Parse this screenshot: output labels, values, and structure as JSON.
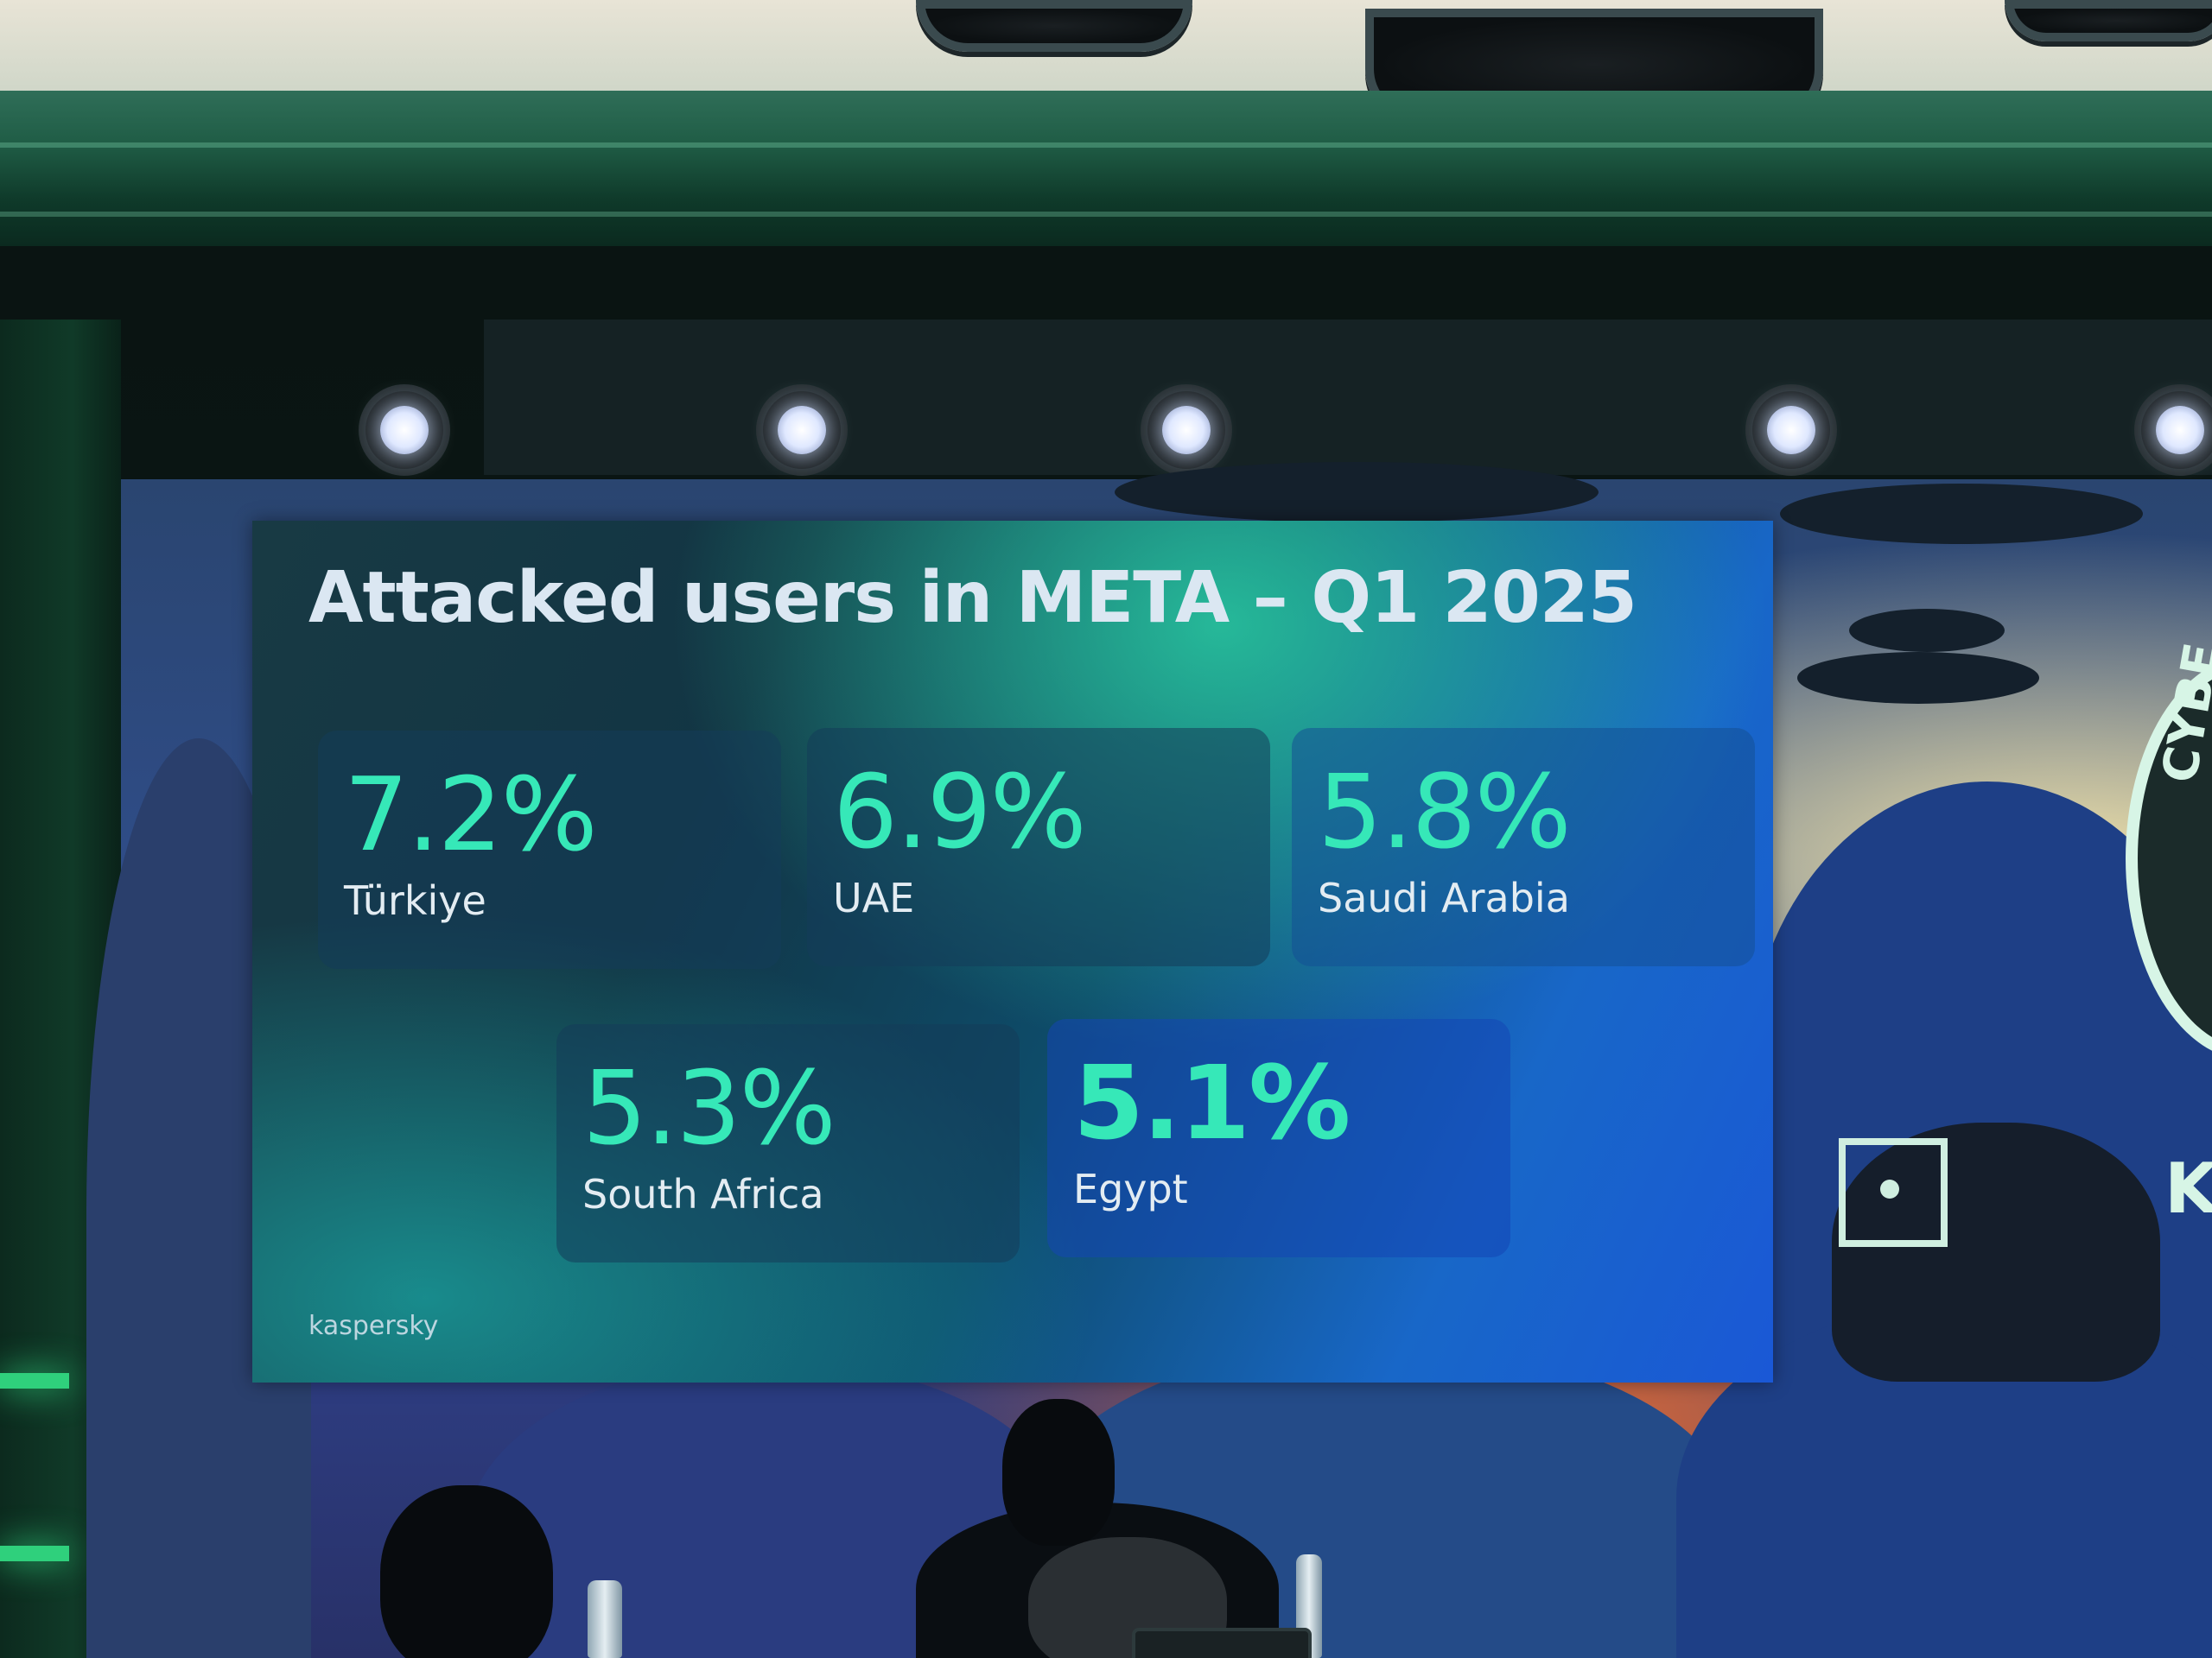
{
  "slide": {
    "title": "Attacked users in META – Q1 2025",
    "logo": "kaspersky"
  },
  "stats": [
    {
      "value": "7.2%",
      "label": "Türkiye"
    },
    {
      "value": "6.9%",
      "label": "UAE"
    },
    {
      "value": "5.8%",
      "label": "Saudi Arabia"
    },
    {
      "value": "5.3%",
      "label": "South Africa"
    },
    {
      "value": "5.1%",
      "label": "Egypt"
    }
  ],
  "backdrop": {
    "emblem_text": "CYBE",
    "brand_letter": "K"
  },
  "colors": {
    "stat_accent": "#36e8b8",
    "slide_gradient_start": "#183a44",
    "slide_gradient_end": "#1a58d6",
    "stage_glow": "#2fd07c"
  }
}
